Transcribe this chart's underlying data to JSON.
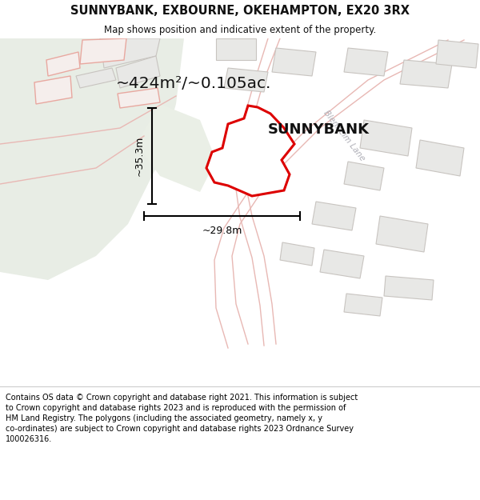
{
  "title": "SUNNYBANK, EXBOURNE, OKEHAMPTON, EX20 3RX",
  "subtitle": "Map shows position and indicative extent of the property.",
  "property_label": "SUNNYBANK",
  "area_label": "~424m²/~0.105ac.",
  "dim_vertical": "~35.3m",
  "dim_horizontal": "~29.8m",
  "footer": "Contains OS data © Crown copyright and database right 2021. This information is subject to Crown copyright and database rights 2023 and is reproduced with the permission of HM Land Registry. The polygons (including the associated geometry, namely x, y co-ordinates) are subject to Crown copyright and database rights 2023 Ordnance Survey 100026316.",
  "bg_color": "#f5f5f0",
  "map_bg": "#f7f5f2",
  "green_color": "#eaf0e8",
  "road_outline_color": "#e8b8b4",
  "building_fill": "#e8e8e8",
  "building_edge": "#d0c8c4",
  "red_outline_color": "#e8a8a0",
  "polygon_red": "#dd0000",
  "polygon_fill": "#ffffff",
  "text_gray": "#b0b0b8",
  "dim_color": "#111111"
}
